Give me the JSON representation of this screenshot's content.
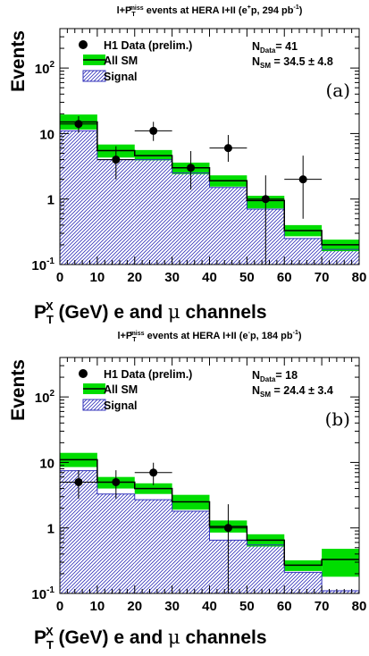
{
  "chart_data": [
    {
      "type": "bar",
      "panel_label": "(a)",
      "title": "l+P_T^miss events at HERA I+II (e^+p, 294 pb^-1)",
      "title_parts": {
        "main": "l+P",
        "sub": "T",
        "sup": "miss",
        "rest": " events at HERA I+II (e",
        "esup": "+",
        "tail": "p, 294 pb",
        "lumsup": "-1",
        "close": ")"
      },
      "xlabel": "P_T^X (GeV)   e and μ channels",
      "ylabel": "Events",
      "x_edges": [
        0,
        10,
        20,
        30,
        40,
        50,
        60,
        70,
        80
      ],
      "xlim": [
        0,
        80
      ],
      "ylim": [
        0.1,
        400
      ],
      "y_scale": "log",
      "x_ticks": [
        0,
        10,
        20,
        30,
        40,
        50,
        60,
        70,
        80
      ],
      "y_ticks": [
        {
          "value": 0.1,
          "label": "10",
          "exp": "-1"
        },
        {
          "value": 1,
          "label": "1",
          "exp": ""
        },
        {
          "value": 10,
          "label": "10",
          "exp": ""
        },
        {
          "value": 100,
          "label": "10",
          "exp": "2"
        }
      ],
      "series": [
        {
          "name": "All SM",
          "kind": "sm_band",
          "color": "#00dd00",
          "values": [
            15,
            5.5,
            4.6,
            3.0,
            1.9,
            0.95,
            0.33,
            0.2
          ],
          "err_low": [
            11.5,
            4.3,
            3.9,
            2.4,
            1.55,
            0.72,
            0.27,
            0.16
          ],
          "err_high": [
            19.5,
            6.8,
            5.6,
            3.6,
            2.3,
            1.12,
            0.4,
            0.24
          ]
        },
        {
          "name": "Signal",
          "kind": "signal",
          "color": "#3333bb",
          "values": [
            11.0,
            4.0,
            4.0,
            2.5,
            1.5,
            0.7,
            0.25,
            0.17
          ]
        },
        {
          "name": "H1 Data (prelim.)",
          "kind": "data",
          "color": "#000000",
          "x": [
            5,
            15,
            25,
            35,
            45,
            55,
            65
          ],
          "values": [
            14,
            4,
            11,
            3,
            6,
            1,
            2
          ],
          "err_low": [
            10.3,
            2.0,
            7.7,
            1.4,
            3.7,
            0.06,
            0.5
          ],
          "err_high": [
            18.4,
            6.4,
            15.1,
            5.4,
            9.5,
            2.3,
            4.6
          ]
        }
      ],
      "summary": [
        {
          "label": "N",
          "sub": "Data",
          "value": "= 41"
        },
        {
          "label": "N",
          "sub": "SM",
          "value": "  = 34.5 ± 4.8"
        }
      ],
      "legend": [
        "H1 Data (prelim.)",
        "All SM",
        "Signal"
      ]
    },
    {
      "type": "bar",
      "panel_label": "(b)",
      "title": "l+P_T^miss events at HERA I+II (e^-p, 184 pb^-1)",
      "title_parts": {
        "main": "l+P",
        "sub": "T",
        "sup": "miss",
        "rest": " events at HERA I+II (e",
        "esup": "-",
        "tail": "p, 184 pb",
        "lumsup": "-1",
        "close": ")"
      },
      "xlabel": "P_T^X (GeV)   e and μ channels",
      "ylabel": "Events",
      "x_edges": [
        0,
        10,
        20,
        30,
        40,
        50,
        60,
        70,
        80
      ],
      "xlim": [
        0,
        80
      ],
      "ylim": [
        0.1,
        400
      ],
      "y_scale": "log",
      "x_ticks": [
        0,
        10,
        20,
        30,
        40,
        50,
        60,
        70,
        80
      ],
      "y_ticks": [
        {
          "value": 0.1,
          "label": "10",
          "exp": "-1"
        },
        {
          "value": 1,
          "label": "1",
          "exp": ""
        },
        {
          "value": 10,
          "label": "10",
          "exp": ""
        },
        {
          "value": 100,
          "label": "10",
          "exp": "2"
        }
      ],
      "series": [
        {
          "name": "All SM",
          "kind": "sm_band",
          "color": "#00dd00",
          "values": [
            11.0,
            5.0,
            4.0,
            2.5,
            1.05,
            0.65,
            0.27,
            0.33
          ],
          "err_low": [
            8.5,
            4.0,
            3.3,
            1.9,
            0.85,
            0.52,
            0.22,
            0.18
          ],
          "err_high": [
            14.0,
            6.0,
            4.8,
            3.2,
            1.3,
            0.8,
            0.32,
            0.48
          ]
        },
        {
          "name": "Signal",
          "kind": "signal",
          "color": "#3333bb",
          "values": [
            7.5,
            3.3,
            2.7,
            1.8,
            0.65,
            0.55,
            0.21,
            0.11
          ]
        },
        {
          "name": "H1 Data (prelim.)",
          "kind": "data",
          "color": "#000000",
          "x": [
            5,
            15,
            25,
            45
          ],
          "values": [
            5,
            5,
            7,
            1
          ],
          "err_low": [
            2.8,
            2.8,
            4.5,
            0.06
          ],
          "err_high": [
            7.6,
            7.6,
            9.9,
            2.3
          ]
        }
      ],
      "summary": [
        {
          "label": "N",
          "sub": "Data",
          "value": "= 18"
        },
        {
          "label": "N",
          "sub": "SM",
          "value": " = 24.4 ± 3.4"
        }
      ],
      "legend": [
        "H1 Data (prelim.)",
        "All SM",
        "Signal"
      ]
    }
  ]
}
